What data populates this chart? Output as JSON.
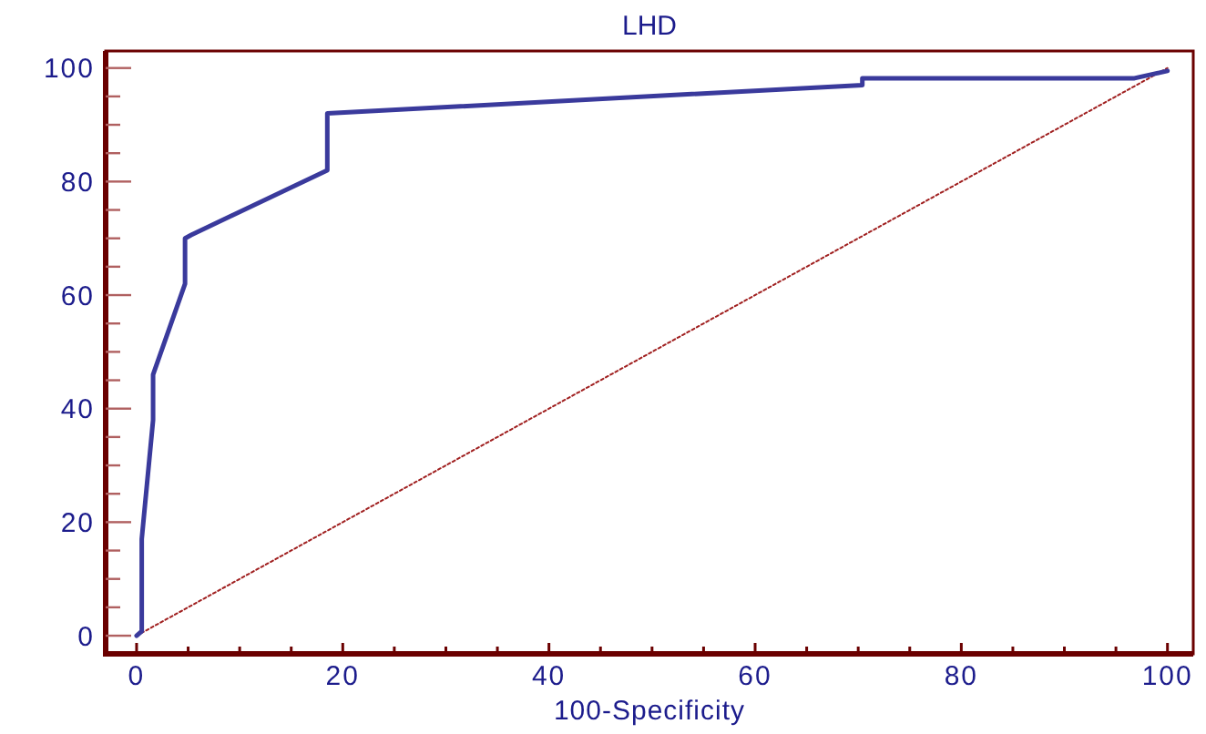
{
  "chart_data": {
    "type": "line",
    "title": "LHD",
    "xlabel": "100-Specificity",
    "xlim": [
      -3,
      102.5
    ],
    "ylim": [
      -3.2,
      103
    ],
    "xticks": [
      0,
      {
        "value": 5,
        "label": null
      },
      {
        "value": 10,
        "label": null
      },
      {
        "value": 15,
        "label": null
      },
      20,
      {
        "value": 25,
        "label": null
      },
      {
        "value": 30,
        "label": null
      },
      {
        "value": 35,
        "label": null
      },
      40,
      {
        "value": 45,
        "label": null
      },
      {
        "value": 50,
        "label": null
      },
      {
        "value": 55,
        "label": null
      },
      60,
      {
        "value": 65,
        "label": null
      },
      {
        "value": 70,
        "label": null
      },
      {
        "value": 75,
        "label": null
      },
      80,
      {
        "value": 85,
        "label": null
      },
      {
        "value": 90,
        "label": null
      },
      {
        "value": 95,
        "label": null
      },
      100
    ],
    "yticks": [
      0,
      {
        "value": 5,
        "label": null
      },
      {
        "value": 10,
        "label": null
      },
      {
        "value": 15,
        "label": null
      },
      20,
      {
        "value": 25,
        "label": null
      },
      {
        "value": 30,
        "label": null
      },
      {
        "value": 35,
        "label": null
      },
      40,
      {
        "value": 45,
        "label": null
      },
      {
        "value": 50,
        "label": null
      },
      {
        "value": 55,
        "label": null
      },
      60,
      {
        "value": 65,
        "label": null
      },
      {
        "value": 70,
        "label": null
      },
      {
        "value": 75,
        "label": null
      },
      80,
      {
        "value": 85,
        "label": null
      },
      {
        "value": 90,
        "label": null
      },
      {
        "value": 95,
        "label": null
      },
      100
    ],
    "grid": false,
    "series": [
      {
        "color": "#3a3a9c",
        "line_style": "solid",
        "x": [
          0,
          0.5,
          0.5,
          1.6,
          1.6,
          4.7,
          4.7,
          5.3,
          18.5,
          18.5,
          70.4,
          70.4,
          96.8,
          100
        ],
        "values": [
          0,
          0.8,
          17,
          38,
          46,
          62,
          70,
          70.6,
          82,
          92,
          97,
          98.2,
          98.2,
          99.5
        ]
      },
      {
        "color": "#a02020",
        "line_style": "dotted",
        "x": [
          0,
          100
        ],
        "values": [
          0,
          100
        ]
      }
    ]
  }
}
